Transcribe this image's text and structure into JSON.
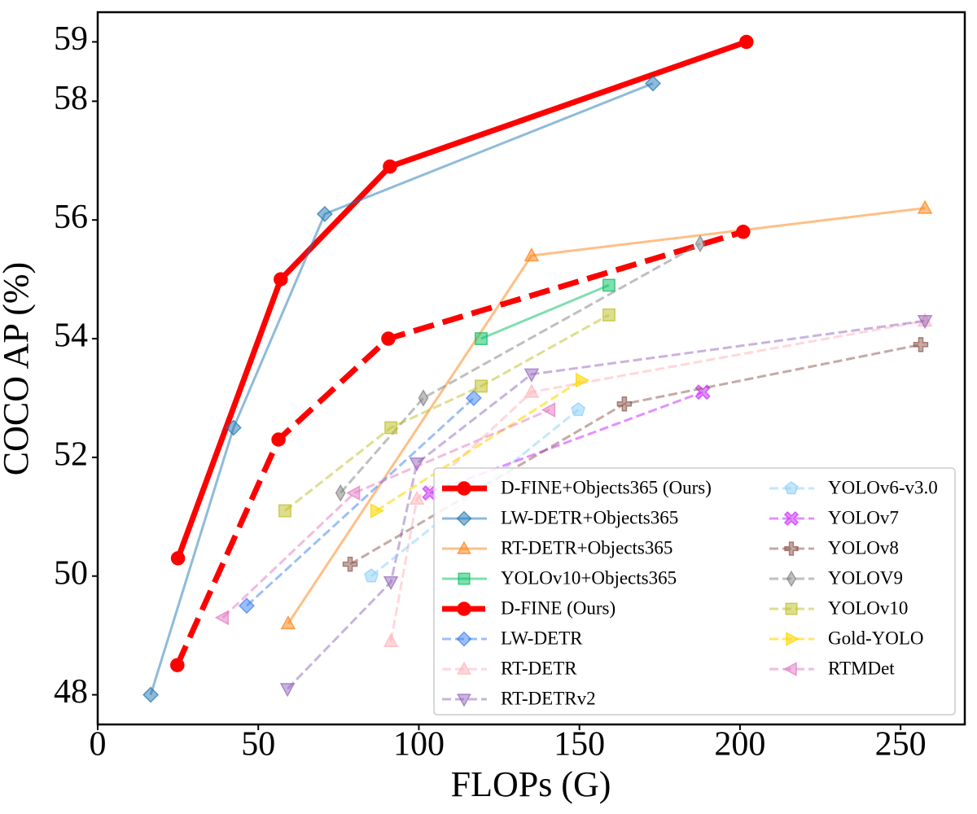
{
  "chart_data": {
    "type": "line",
    "xlabel": "FLOPs (G)",
    "ylabel": "COCO AP (%)",
    "xlim": [
      0,
      270
    ],
    "ylim": [
      47.5,
      59.5
    ],
    "xticks": [
      0,
      50,
      100,
      150,
      200,
      250
    ],
    "yticks": [
      48,
      50,
      52,
      54,
      56,
      58,
      59
    ],
    "legend": "lower right",
    "legend_columns": 2,
    "series": [
      {
        "name": "D-FINE+Objects365 (Ours)",
        "color": "#ff0000",
        "opacity": 1,
        "linestyle": "solid",
        "linewidth": 7,
        "marker": "circle",
        "x": [
          25,
          57,
          91,
          202
        ],
        "values": [
          50.3,
          55.0,
          56.9,
          59.0
        ]
      },
      {
        "name": "LW-DETR+Objects365",
        "color": "#1f77b4",
        "opacity": 0.5,
        "linestyle": "solid",
        "linewidth": 3,
        "marker": "diamond",
        "x": [
          16.5,
          42.3,
          70.7,
          172.9
        ],
        "values": [
          48.0,
          52.5,
          56.1,
          58.3
        ]
      },
      {
        "name": "RT-DETR+Objects365",
        "color": "#ff7f0e",
        "opacity": 0.5,
        "linestyle": "solid",
        "linewidth": 3,
        "marker": "triangle-up",
        "x": [
          59.3,
          135.1,
          257.6
        ],
        "values": [
          49.2,
          55.4,
          56.2
        ]
      },
      {
        "name": "YOLOv10+Objects365",
        "color": "#00c060",
        "opacity": 0.5,
        "linestyle": "solid",
        "linewidth": 3,
        "marker": "square",
        "x": [
          119.4,
          159.2
        ],
        "values": [
          54.0,
          54.9
        ]
      },
      {
        "name": "D-FINE (Ours)",
        "color": "#ff0000",
        "opacity": 1,
        "linestyle": "dashed",
        "linewidth": 7,
        "marker": "circle",
        "x": [
          24.8,
          56.3,
          90.5,
          201
        ],
        "values": [
          48.5,
          52.3,
          54.0,
          55.8
        ]
      },
      {
        "name": "LW-DETR",
        "color": "#3a7ff0",
        "opacity": 0.5,
        "linestyle": "dashed",
        "linewidth": 3,
        "marker": "diamond",
        "x": [
          46.4,
          117.1
        ],
        "values": [
          49.5,
          53.0
        ]
      },
      {
        "name": "RT-DETR",
        "color": "#ffb0b8",
        "opacity": 0.5,
        "linestyle": "dashed",
        "linewidth": 3,
        "marker": "triangle-up",
        "x": [
          91.3,
          99.4,
          135.1,
          257.6
        ],
        "values": [
          48.9,
          51.3,
          53.1,
          54.3
        ]
      },
      {
        "name": "RT-DETRv2",
        "color": "#9467bd",
        "opacity": 0.5,
        "linestyle": "dashed",
        "linewidth": 3,
        "marker": "triangle-down",
        "x": [
          59.1,
          91.3,
          99.4,
          135.1,
          257.6
        ],
        "values": [
          48.1,
          49.9,
          51.9,
          53.4,
          54.3
        ]
      },
      {
        "name": "YOLOv6-v3.0",
        "color": "#87cefa",
        "opacity": 0.5,
        "linestyle": "dashed",
        "linewidth": 3,
        "marker": "pentagon",
        "x": [
          85.2,
          149.6
        ],
        "values": [
          50.0,
          52.8
        ]
      },
      {
        "name": "YOLOv7",
        "color": "#cc33ff",
        "opacity": 0.55,
        "linestyle": "dashed",
        "linewidth": 3,
        "marker": "x",
        "x": [
          103.4,
          188.4
        ],
        "values": [
          51.4,
          53.1
        ]
      },
      {
        "name": "YOLOv8",
        "color": "#8c564b",
        "opacity": 0.5,
        "linestyle": "dashed",
        "linewidth": 3,
        "marker": "plus",
        "x": [
          78.6,
          164,
          256.3
        ],
        "values": [
          50.2,
          52.9,
          53.9
        ]
      },
      {
        "name": "YOLOV9",
        "color": "#7f7f7f",
        "opacity": 0.5,
        "linestyle": "dashed",
        "linewidth": 3,
        "marker": "thin-diamond",
        "x": [
          75.6,
          101.4,
          187.6
        ],
        "values": [
          51.4,
          53.0,
          55.6
        ]
      },
      {
        "name": "YOLOv10",
        "color": "#bcbd22",
        "opacity": 0.5,
        "linestyle": "dashed",
        "linewidth": 3,
        "marker": "square",
        "x": [
          58.3,
          91.3,
          119.4,
          159.2
        ],
        "values": [
          51.1,
          52.5,
          53.2,
          54.4
        ]
      },
      {
        "name": "Gold-YOLO",
        "color": "#ffd700",
        "opacity": 0.6,
        "linestyle": "dashed",
        "linewidth": 3,
        "marker": "triangle-right",
        "x": [
          86.7,
          150.6
        ],
        "values": [
          51.1,
          53.3
        ]
      },
      {
        "name": "RTMDet",
        "color": "#e377c2",
        "opacity": 0.5,
        "linestyle": "dashed",
        "linewidth": 3,
        "marker": "triangle-left",
        "x": [
          39,
          79.9,
          140.7
        ],
        "values": [
          49.3,
          51.4,
          52.8
        ]
      }
    ]
  }
}
